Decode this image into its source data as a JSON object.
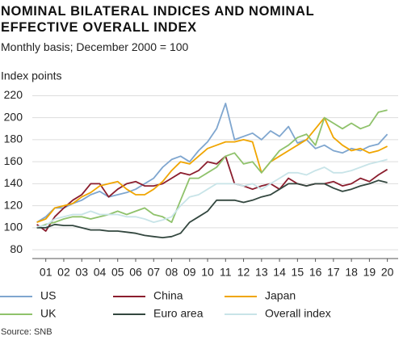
{
  "chart_data": {
    "type": "line",
    "title": "NOMINAL BILATERAL INDICES AND NOMINAL EFFECTIVE OVERALL INDEX",
    "subtitle": "Monthly basis; December 2000 = 100",
    "y_label": "Index points",
    "source": "Source: SNB",
    "x": [
      1,
      1.5,
      2,
      2.5,
      3,
      3.5,
      4,
      4.5,
      5,
      5.5,
      6,
      6.5,
      7,
      7.5,
      8,
      8.5,
      9,
      9.5,
      10,
      10.5,
      11,
      11.5,
      12,
      12.5,
      13,
      13.5,
      14,
      14.5,
      15,
      15.5,
      16,
      16.5,
      17,
      17.5,
      18,
      18.5,
      19,
      19.5,
      20,
      20.5
    ],
    "xlim": [
      0.75,
      21.1
    ],
    "xticks": [
      {
        "value": 1.5,
        "label": "01"
      },
      {
        "value": 2.5,
        "label": "02"
      },
      {
        "value": 3.5,
        "label": "03"
      },
      {
        "value": 4.5,
        "label": "04"
      },
      {
        "value": 5.5,
        "label": "05"
      },
      {
        "value": 6.5,
        "label": "06"
      },
      {
        "value": 7.5,
        "label": "07"
      },
      {
        "value": 8.5,
        "label": "08"
      },
      {
        "value": 9.5,
        "label": "09"
      },
      {
        "value": 10.5,
        "label": "10"
      },
      {
        "value": 11.5,
        "label": "11"
      },
      {
        "value": 12.5,
        "label": "12"
      },
      {
        "value": 13.5,
        "label": "13"
      },
      {
        "value": 14.5,
        "label": "14"
      },
      {
        "value": 15.5,
        "label": "15"
      },
      {
        "value": 16.5,
        "label": "16"
      },
      {
        "value": 17.5,
        "label": "17"
      },
      {
        "value": 18.5,
        "label": "18"
      },
      {
        "value": 19.5,
        "label": "19"
      },
      {
        "value": 20.5,
        "label": "20"
      }
    ],
    "ylim": [
      72,
      224
    ],
    "yticks": [
      80,
      100,
      120,
      140,
      160,
      180,
      200,
      220
    ],
    "grid": true,
    "series": [
      {
        "name": "US",
        "color": "#7fa6cf",
        "values": [
          105,
          110,
          118,
          118,
          122,
          125,
          130,
          133,
          128,
          130,
          132,
          135,
          140,
          145,
          155,
          162,
          165,
          160,
          170,
          178,
          190,
          213,
          180,
          183,
          186,
          180,
          188,
          183,
          192,
          177,
          180,
          172,
          175,
          170,
          168,
          172,
          170,
          174,
          176,
          185
        ]
      },
      {
        "name": "China",
        "color": "#8b1e2e",
        "values": [
          103,
          97,
          110,
          118,
          125,
          130,
          140,
          140,
          128,
          135,
          140,
          142,
          138,
          138,
          140,
          145,
          150,
          148,
          152,
          160,
          158,
          165,
          140,
          138,
          135,
          138,
          140,
          135,
          145,
          140,
          138,
          140,
          140,
          142,
          138,
          140,
          145,
          142,
          148,
          153
        ]
      },
      {
        "name": "Japan",
        "color": "#f0a500",
        "values": [
          105,
          108,
          118,
          120,
          122,
          128,
          132,
          138,
          140,
          142,
          135,
          130,
          130,
          135,
          142,
          152,
          160,
          158,
          165,
          172,
          175,
          178,
          178,
          180,
          178,
          150,
          160,
          165,
          170,
          175,
          180,
          190,
          200,
          182,
          175,
          170,
          172,
          168,
          170,
          174
        ]
      },
      {
        "name": "UK",
        "color": "#8fc26b",
        "values": [
          100,
          103,
          105,
          108,
          110,
          110,
          108,
          110,
          112,
          115,
          112,
          115,
          118,
          112,
          110,
          105,
          125,
          145,
          145,
          150,
          155,
          165,
          168,
          158,
          160,
          150,
          160,
          170,
          175,
          182,
          185,
          175,
          200,
          195,
          190,
          195,
          190,
          193,
          205,
          207
        ]
      },
      {
        "name": "Euro area",
        "color": "#33473f",
        "values": [
          100,
          100,
          103,
          102,
          102,
          100,
          98,
          98,
          97,
          97,
          96,
          95,
          93,
          92,
          91,
          92,
          95,
          105,
          110,
          115,
          125,
          125,
          125,
          123,
          125,
          128,
          130,
          135,
          140,
          140,
          138,
          140,
          140,
          136,
          133,
          135,
          138,
          140,
          143,
          141
        ]
      },
      {
        "name": "Overall index",
        "color": "#c8e4e8",
        "values": [
          101,
          102,
          108,
          110,
          112,
          112,
          115,
          112,
          112,
          112,
          110,
          110,
          108,
          105,
          107,
          110,
          120,
          128,
          130,
          135,
          140,
          140,
          140,
          138,
          140,
          135,
          140,
          145,
          150,
          150,
          148,
          152,
          155,
          150,
          150,
          152,
          155,
          158,
          160,
          162
        ]
      }
    ]
  }
}
